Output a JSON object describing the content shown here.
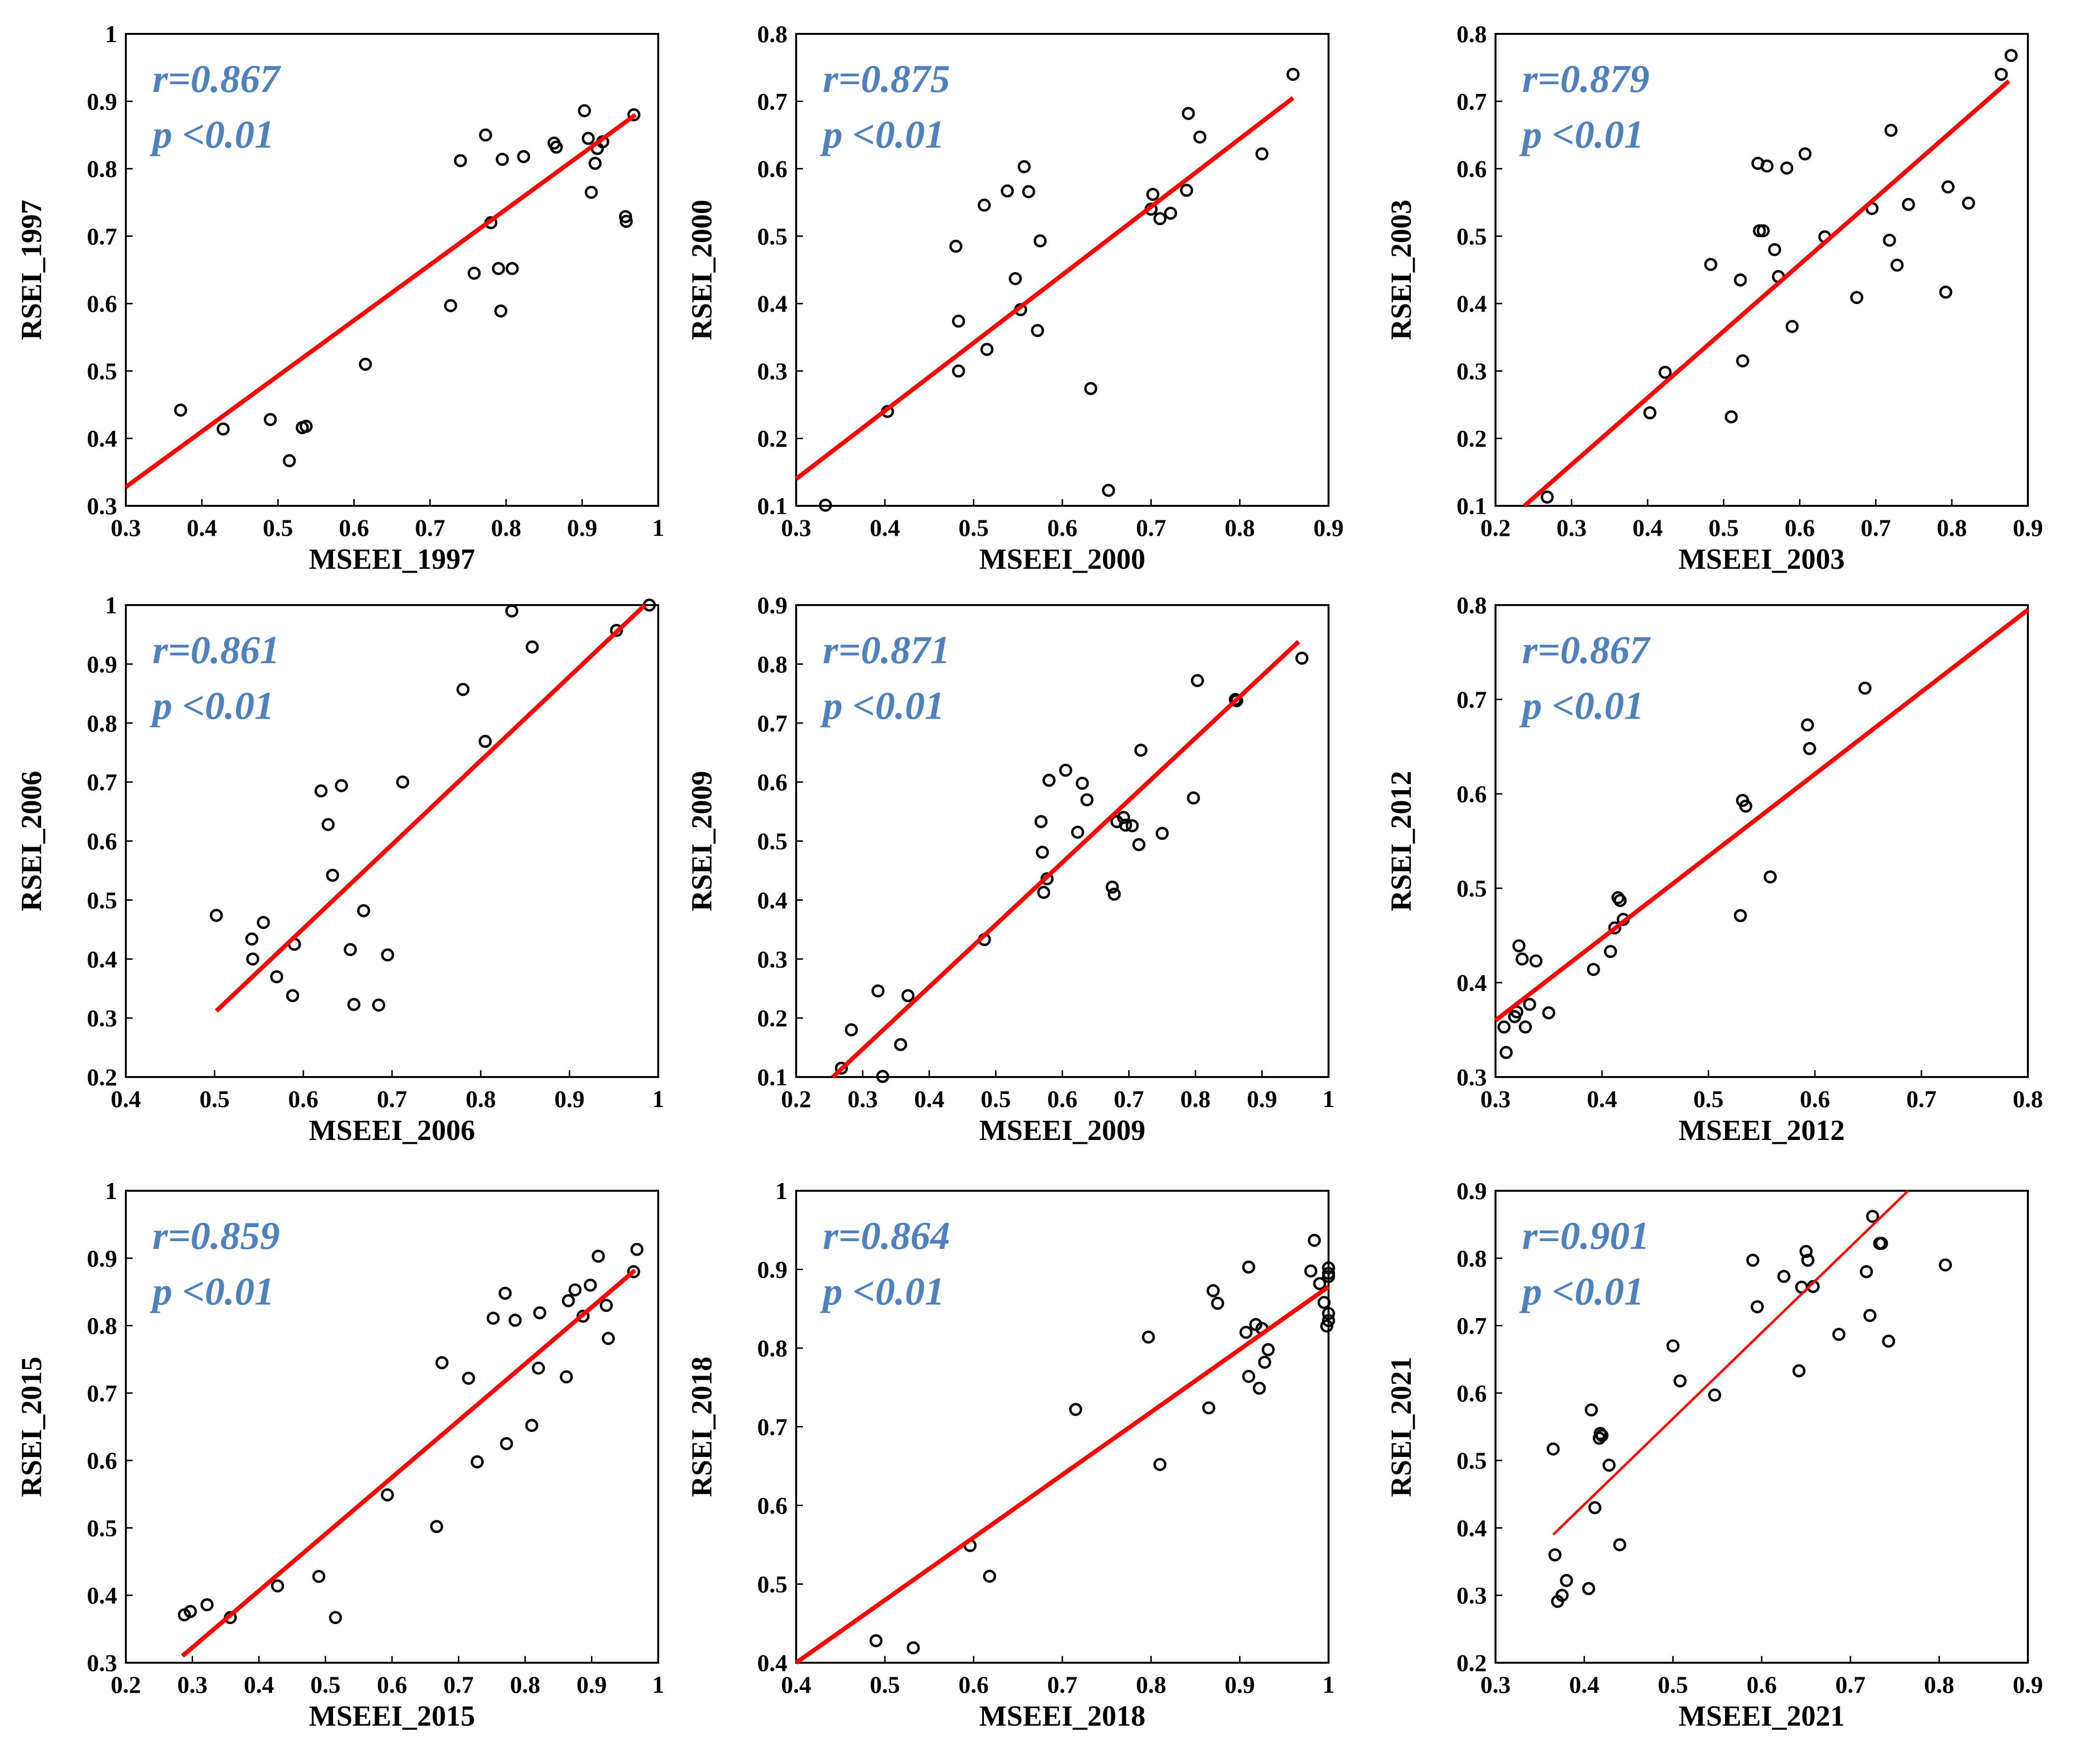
{
  "charts": [
    {
      "type": "scatter",
      "xlabel": "MSEEI_1997",
      "ylabel": "RSEI_1997",
      "xlim": [
        0.3,
        1
      ],
      "ylim": [
        0.3,
        1
      ],
      "xticks": [
        "0.3",
        "0.4",
        "0.5",
        "0.6",
        "0.7",
        "0.8",
        "0.9",
        "1"
      ],
      "yticks": [
        "0.3",
        "0.4",
        "0.5",
        "0.6",
        "0.7",
        "0.8",
        "0.9",
        "1"
      ],
      "r_text": "r=0.867",
      "p_text": "p <0.01",
      "fit": [
        [
          0.3,
          0.328
        ],
        [
          0.97,
          0.88
        ]
      ],
      "x": [
        0.372,
        0.428,
        0.49,
        0.515,
        0.532,
        0.537,
        0.615,
        0.727,
        0.74,
        0.758,
        0.773,
        0.78,
        0.79,
        0.793,
        0.795,
        0.808,
        0.823,
        0.863,
        0.866,
        0.903,
        0.908,
        0.912,
        0.917,
        0.92,
        0.927,
        0.957,
        0.958,
        0.968
      ],
      "y": [
        0.442,
        0.414,
        0.428,
        0.367,
        0.416,
        0.418,
        0.51,
        0.597,
        0.812,
        0.645,
        0.85,
        0.72,
        0.652,
        0.589,
        0.814,
        0.652,
        0.818,
        0.838,
        0.832,
        0.886,
        0.845,
        0.765,
        0.808,
        0.83,
        0.84,
        0.729,
        0.722,
        0.88
      ]
    },
    {
      "type": "scatter",
      "xlabel": "MSEEI_2000",
      "ylabel": "RSEI_2000",
      "xlim": [
        0.3,
        0.9
      ],
      "ylim": [
        0.1,
        0.8
      ],
      "xticks": [
        "0.3",
        "0.4",
        "0.5",
        "0.6",
        "0.7",
        "0.8",
        "0.9"
      ],
      "yticks": [
        "0.1",
        "0.2",
        "0.3",
        "0.4",
        "0.5",
        "0.6",
        "0.7",
        "0.8"
      ],
      "r_text": "r=0.875",
      "p_text": "p <0.01",
      "fit": [
        [
          0.3,
          0.14
        ],
        [
          0.86,
          0.705
        ]
      ],
      "x": [
        0.333,
        0.403,
        0.48,
        0.483,
        0.483,
        0.512,
        0.515,
        0.538,
        0.547,
        0.553,
        0.557,
        0.562,
        0.572,
        0.575,
        0.632,
        0.652,
        0.7,
        0.702,
        0.71,
        0.722,
        0.74,
        0.742,
        0.755,
        0.825,
        0.86
      ],
      "y": [
        0.101,
        0.24,
        0.485,
        0.3,
        0.374,
        0.546,
        0.332,
        0.567,
        0.437,
        0.391,
        0.603,
        0.566,
        0.36,
        0.493,
        0.274,
        0.123,
        0.54,
        0.562,
        0.526,
        0.534,
        0.568,
        0.682,
        0.647,
        0.622,
        0.74
      ]
    },
    {
      "type": "scatter",
      "xlabel": "MSEEI_2003",
      "ylabel": "RSEI_2003",
      "xlim": [
        0.2,
        0.9
      ],
      "ylim": [
        0.1,
        0.8
      ],
      "xticks": [
        "0.2",
        "0.3",
        "0.4",
        "0.5",
        "0.6",
        "0.7",
        "0.8",
        "0.9"
      ],
      "yticks": [
        "0.1",
        "0.2",
        "0.3",
        "0.4",
        "0.5",
        "0.6",
        "0.7",
        "0.8"
      ],
      "r_text": "r=0.879",
      "p_text": "p <0.01",
      "fit": [
        [
          0.238,
          0.1
        ],
        [
          0.875,
          0.73
        ]
      ],
      "x": [
        0.268,
        0.403,
        0.423,
        0.483,
        0.51,
        0.522,
        0.525,
        0.545,
        0.547,
        0.552,
        0.557,
        0.567,
        0.572,
        0.583,
        0.59,
        0.607,
        0.633,
        0.675,
        0.695,
        0.718,
        0.72,
        0.728,
        0.743,
        0.792,
        0.795,
        0.822,
        0.865,
        0.878
      ],
      "y": [
        0.113,
        0.238,
        0.298,
        0.458,
        0.232,
        0.435,
        0.315,
        0.608,
        0.508,
        0.508,
        0.604,
        0.48,
        0.44,
        0.601,
        0.366,
        0.622,
        0.499,
        0.409,
        0.541,
        0.494,
        0.657,
        0.457,
        0.547,
        0.417,
        0.573,
        0.549,
        0.74,
        0.768
      ]
    },
    {
      "type": "scatter",
      "xlabel": "MSEEI_2006",
      "ylabel": "RSEI_2006",
      "xlim": [
        0.4,
        1
      ],
      "ylim": [
        0.2,
        1
      ],
      "xticks": [
        "0.4",
        "0.5",
        "0.6",
        "0.7",
        "0.8",
        "0.9",
        "1"
      ],
      "yticks": [
        "0.2",
        "0.3",
        "0.4",
        "0.5",
        "0.6",
        "0.7",
        "0.8",
        "0.9",
        "1"
      ],
      "r_text": "r=0.861",
      "p_text": "p <0.01",
      "fit": [
        [
          0.502,
          0.312
        ],
        [
          0.985,
          1.0
        ]
      ],
      "x": [
        0.502,
        0.542,
        0.543,
        0.555,
        0.57,
        0.588,
        0.59,
        0.62,
        0.628,
        0.633,
        0.643,
        0.653,
        0.657,
        0.668,
        0.685,
        0.695,
        0.712,
        0.78,
        0.805,
        0.835,
        0.858,
        0.953,
        0.99
      ],
      "y": [
        0.474,
        0.434,
        0.4,
        0.462,
        0.37,
        0.338,
        0.425,
        0.685,
        0.628,
        0.542,
        0.694,
        0.416,
        0.323,
        0.482,
        0.322,
        0.407,
        0.7,
        0.857,
        0.769,
        0.99,
        0.929,
        0.957,
        1.0
      ]
    },
    {
      "type": "scatter",
      "xlabel": "MSEEI_2009",
      "ylabel": "RSEI_2009",
      "xlim": [
        0.2,
        1
      ],
      "ylim": [
        0.1,
        0.9
      ],
      "xticks": [
        "0.2",
        "0.3",
        "0.4",
        "0.5",
        "0.6",
        "0.7",
        "0.8",
        "0.9",
        "1"
      ],
      "yticks": [
        "0.1",
        "0.2",
        "0.3",
        "0.4",
        "0.5",
        "0.6",
        "0.7",
        "0.8",
        "0.9"
      ],
      "r_text": "r=0.871",
      "p_text": "p <0.01",
      "fit": [
        [
          0.255,
          0.1
        ],
        [
          0.955,
          0.838
        ]
      ],
      "x": [
        0.268,
        0.283,
        0.323,
        0.33,
        0.357,
        0.368,
        0.483,
        0.568,
        0.57,
        0.572,
        0.577,
        0.58,
        0.605,
        0.623,
        0.63,
        0.637,
        0.675,
        0.678,
        0.682,
        0.692,
        0.695,
        0.705,
        0.715,
        0.718,
        0.75,
        0.797,
        0.803,
        0.86,
        0.862,
        0.96
      ],
      "y": [
        0.115,
        0.18,
        0.246,
        0.101,
        0.155,
        0.238,
        0.333,
        0.533,
        0.481,
        0.413,
        0.436,
        0.603,
        0.62,
        0.515,
        0.598,
        0.57,
        0.422,
        0.41,
        0.533,
        0.54,
        0.527,
        0.526,
        0.494,
        0.654,
        0.513,
        0.573,
        0.772,
        0.74,
        0.738,
        0.81
      ]
    },
    {
      "type": "scatter",
      "xlabel": "MSEEI_2012",
      "ylabel": "RSEI_2012",
      "xlim": [
        0.3,
        0.8
      ],
      "ylim": [
        0.3,
        0.8
      ],
      "xticks": [
        "0.3",
        "0.4",
        "0.5",
        "0.6",
        "0.7",
        "0.8"
      ],
      "yticks": [
        "0.3",
        "0.4",
        "0.5",
        "0.6",
        "0.7",
        "0.8"
      ],
      "r_text": "r=0.867",
      "p_text": "p <0.01",
      "fit": [
        [
          0.3,
          0.36
        ],
        [
          0.8,
          0.795
        ]
      ],
      "x": [
        0.308,
        0.31,
        0.318,
        0.32,
        0.322,
        0.325,
        0.328,
        0.332,
        0.338,
        0.35,
        0.392,
        0.408,
        0.412,
        0.415,
        0.417,
        0.42,
        0.53,
        0.532,
        0.535,
        0.558,
        0.593,
        0.595,
        0.647
      ],
      "y": [
        0.353,
        0.326,
        0.364,
        0.369,
        0.439,
        0.425,
        0.353,
        0.377,
        0.423,
        0.368,
        0.414,
        0.433,
        0.458,
        0.49,
        0.487,
        0.467,
        0.471,
        0.593,
        0.587,
        0.512,
        0.673,
        0.648,
        0.712
      ]
    },
    {
      "type": "scatter",
      "xlabel": "MSEEI_2015",
      "ylabel": "RSEI_2015",
      "xlim": [
        0.2,
        1
      ],
      "ylim": [
        0.3,
        1
      ],
      "xticks": [
        "0.2",
        "0.3",
        "0.4",
        "0.5",
        "0.6",
        "0.7",
        "0.8",
        "0.9",
        "1"
      ],
      "yticks": [
        "0.3",
        "0.4",
        "0.5",
        "0.6",
        "0.7",
        "0.8",
        "0.9",
        "1"
      ],
      "r_text": "r=0.859",
      "p_text": "p <0.01",
      "fit": [
        [
          0.285,
          0.31
        ],
        [
          0.965,
          0.882
        ]
      ],
      "x": [
        0.288,
        0.297,
        0.322,
        0.357,
        0.428,
        0.49,
        0.515,
        0.593,
        0.667,
        0.675,
        0.715,
        0.728,
        0.752,
        0.77,
        0.772,
        0.785,
        0.81,
        0.82,
        0.822,
        0.862,
        0.865,
        0.875,
        0.887,
        0.898,
        0.91,
        0.922,
        0.925,
        0.963,
        0.968
      ],
      "y": [
        0.371,
        0.376,
        0.386,
        0.367,
        0.414,
        0.428,
        0.367,
        0.549,
        0.502,
        0.745,
        0.722,
        0.598,
        0.811,
        0.848,
        0.625,
        0.808,
        0.652,
        0.737,
        0.819,
        0.724,
        0.837,
        0.853,
        0.814,
        0.86,
        0.903,
        0.83,
        0.781,
        0.88,
        0.913
      ]
    },
    {
      "type": "scatter",
      "xlabel": "MSEEI_2018",
      "ylabel": "RSEI_2018",
      "xlim": [
        0.4,
        1
      ],
      "ylim": [
        0.4,
        1
      ],
      "xticks": [
        "0.4",
        "0.5",
        "0.6",
        "0.7",
        "0.8",
        "0.9",
        "1"
      ],
      "yticks": [
        "0.4",
        "0.5",
        "0.6",
        "0.7",
        "0.8",
        "0.9",
        "1"
      ],
      "r_text": "r=0.864",
      "p_text": "p <0.01",
      "fit": [
        [
          0.4,
          0.4
        ],
        [
          1.0,
          0.878
        ]
      ],
      "x": [
        0.49,
        0.532,
        0.596,
        0.618,
        0.715,
        0.797,
        0.81,
        0.865,
        0.87,
        0.875,
        0.907,
        0.91,
        0.91,
        0.918,
        0.922,
        0.925,
        0.928,
        0.932,
        0.98,
        0.984,
        0.99,
        0.995,
        0.998,
        1.0,
        1.0,
        1.0,
        1.0,
        1.0
      ],
      "y": [
        0.428,
        0.419,
        0.549,
        0.51,
        0.722,
        0.814,
        0.652,
        0.724,
        0.873,
        0.857,
        0.82,
        0.903,
        0.764,
        0.83,
        0.749,
        0.825,
        0.782,
        0.798,
        0.898,
        0.937,
        0.882,
        0.858,
        0.828,
        0.891,
        0.895,
        0.902,
        0.844,
        0.835
      ]
    },
    {
      "type": "scatter",
      "xlabel": "MSEEI_2021",
      "ylabel": "RSEI_2021",
      "xlim": [
        0.3,
        0.9
      ],
      "ylim": [
        0.2,
        0.9
      ],
      "xticks": [
        "0.3",
        "0.4",
        "0.5",
        "0.6",
        "0.7",
        "0.8",
        "0.9"
      ],
      "yticks": [
        "0.2",
        "0.3",
        "0.4",
        "0.5",
        "0.6",
        "0.7",
        "0.8",
        "0.9"
      ],
      "r_text": "r=0.901",
      "p_text": "p <0.01",
      "fit": [
        [
          0.365,
          0.39
        ],
        [
          0.765,
          0.9
        ]
      ],
      "x": [
        0.365,
        0.367,
        0.37,
        0.375,
        0.38,
        0.405,
        0.408,
        0.412,
        0.417,
        0.418,
        0.42,
        0.428,
        0.44,
        0.5,
        0.508,
        0.547,
        0.59,
        0.595,
        0.625,
        0.642,
        0.645,
        0.65,
        0.652,
        0.658,
        0.687,
        0.718,
        0.722,
        0.725,
        0.733,
        0.735,
        0.743,
        0.807
      ],
      "y": [
        0.517,
        0.36,
        0.291,
        0.3,
        0.322,
        0.31,
        0.575,
        0.43,
        0.533,
        0.54,
        0.537,
        0.493,
        0.375,
        0.67,
        0.618,
        0.597,
        0.797,
        0.728,
        0.773,
        0.633,
        0.757,
        0.81,
        0.797,
        0.758,
        0.687,
        0.78,
        0.715,
        0.862,
        0.822,
        0.822,
        0.677,
        0.79
      ]
    }
  ],
  "colors": {
    "fit": "#ff0000",
    "annotation": "#4f81bd",
    "marker": "#000000"
  }
}
